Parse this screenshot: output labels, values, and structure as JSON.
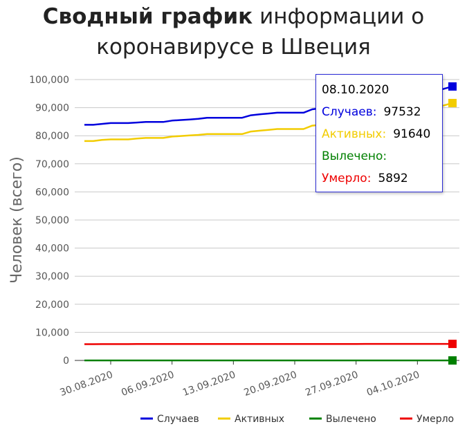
{
  "title": {
    "bold": "Сводный график",
    "rest1": "информации о",
    "rest2": "коронавирусе в Швеция"
  },
  "colors": {
    "cases": "#0000dd",
    "active": "#f2cc00",
    "recovered": "#008000",
    "deaths": "#ee0000"
  },
  "chart_data": {
    "type": "line",
    "title": "Сводный график информации о коронавирусе в Швеция",
    "ylabel": "Человек (всего)",
    "xlabel": "",
    "ylim": [
      0,
      100000
    ],
    "ytick_labels": [
      "0",
      "10,000",
      "20,000",
      "30,000",
      "40,000",
      "50,000",
      "60,000",
      "70,000",
      "80,000",
      "90,000",
      "100,000"
    ],
    "xtick_labels": [
      "30.08.2020",
      "06.09.2020",
      "13.09.2020",
      "20.09.2020",
      "27.09.2020",
      "04.10.2020"
    ],
    "x": [
      "27.08.2020",
      "28.08.2020",
      "29.08.2020",
      "30.08.2020",
      "31.08.2020",
      "01.09.2020",
      "02.09.2020",
      "03.09.2020",
      "04.09.2020",
      "05.09.2020",
      "06.09.2020",
      "07.09.2020",
      "08.09.2020",
      "09.09.2020",
      "10.09.2020",
      "11.09.2020",
      "12.09.2020",
      "13.09.2020",
      "14.09.2020",
      "15.09.2020",
      "16.09.2020",
      "17.09.2020",
      "18.09.2020",
      "19.09.2020",
      "20.09.2020",
      "21.09.2020",
      "22.09.2020",
      "23.09.2020",
      "24.09.2020",
      "25.09.2020",
      "26.09.2020",
      "27.09.2020",
      "28.09.2020",
      "29.09.2020",
      "30.09.2020",
      "01.10.2020",
      "02.10.2020",
      "03.10.2020",
      "04.10.2020",
      "05.10.2020",
      "06.10.2020",
      "07.10.2020",
      "08.10.2020"
    ],
    "series": [
      {
        "name": "Случаев",
        "color": "#0000dd",
        "values": [
          83900,
          83900,
          84200,
          84500,
          84500,
          84500,
          84700,
          84900,
          84900,
          84900,
          85400,
          85600,
          85800,
          86000,
          86400,
          86400,
          86400,
          86400,
          86400,
          87300,
          87600,
          87900,
          88200,
          88200,
          88200,
          88200,
          89400,
          89800,
          90200,
          90500,
          90500,
          90500,
          91600,
          92200,
          92900,
          93700,
          93700,
          94300,
          94300,
          94300,
          95800,
          96700,
          97532
        ]
      },
      {
        "name": "Активных",
        "color": "#f2cc00",
        "values": [
          78100,
          78100,
          78500,
          78700,
          78700,
          78700,
          79000,
          79200,
          79200,
          79200,
          79700,
          79900,
          80100,
          80300,
          80600,
          80600,
          80600,
          80600,
          80600,
          81500,
          81800,
          82100,
          82400,
          82400,
          82400,
          82400,
          83600,
          83900,
          84200,
          84600,
          84600,
          84600,
          85700,
          86300,
          87000,
          87800,
          87800,
          88400,
          88400,
          88400,
          89900,
          90800,
          91640
        ]
      },
      {
        "name": "Вылечено",
        "color": "#008000",
        "values": [
          0,
          0,
          0,
          0,
          0,
          0,
          0,
          0,
          0,
          0,
          0,
          0,
          0,
          0,
          0,
          0,
          0,
          0,
          0,
          0,
          0,
          0,
          0,
          0,
          0,
          0,
          0,
          0,
          0,
          0,
          0,
          0,
          0,
          0,
          0,
          0,
          0,
          0,
          0,
          0,
          0,
          0,
          0
        ]
      },
      {
        "name": "Умерло",
        "color": "#ee0000",
        "values": [
          5800,
          5800,
          5810,
          5810,
          5820,
          5820,
          5830,
          5840,
          5840,
          5840,
          5840,
          5840,
          5850,
          5850,
          5860,
          5860,
          5860,
          5860,
          5860,
          5860,
          5860,
          5860,
          5860,
          5860,
          5860,
          5860,
          5870,
          5870,
          5870,
          5870,
          5870,
          5870,
          5880,
          5880,
          5880,
          5880,
          5880,
          5880,
          5880,
          5890,
          5890,
          5890,
          5892
        ]
      }
    ],
    "legend_position": "bottom-right",
    "grid": true
  },
  "tooltip": {
    "date": "08.10.2020",
    "cases_label": "Случаев:",
    "cases_value": "97532",
    "active_label": "Активных:",
    "active_value": "91640",
    "recovered_label": "Вылечено:",
    "recovered_value": "",
    "deaths_label": "Умерло:",
    "deaths_value": "5892"
  }
}
